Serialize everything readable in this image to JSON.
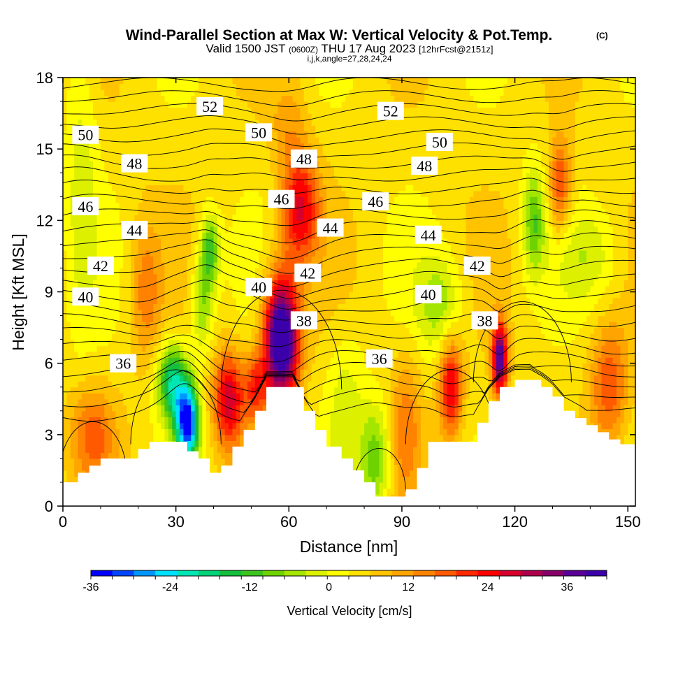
{
  "header": {
    "title": "Wind-Parallel Section at Max W: Vertical Velocity & Pot.Temp.",
    "title_units": "(C)",
    "valid_prefix": "Valid 1500 JST",
    "valid_utc": "(0600Z)",
    "valid_date": "THU 17 Aug 2023",
    "forecast": "[12hrFcst@2151z]",
    "indices": "i,j,k,angle=27,28,24,24"
  },
  "chart_data": {
    "type": "heatmap",
    "title": "Wind-Parallel Section at Max W: Vertical Velocity & Pot.Temp.",
    "xlabel": "Distance [nm]",
    "ylabel": "Height [Kft MSL]",
    "xlim": [
      0,
      152
    ],
    "ylim": [
      0,
      18
    ],
    "x_ticks": [
      "0",
      "30",
      "60",
      "90",
      "120",
      "150"
    ],
    "y_ticks": [
      "0",
      "3",
      "6",
      "9",
      "12",
      "15",
      "18"
    ],
    "grid": false,
    "colorbar": {
      "label": "Vertical Velocity [cm/s]",
      "range": [
        -36,
        42
      ],
      "step": 3,
      "tick_labels": [
        "-36",
        "-24",
        "-12",
        "0",
        "12",
        "24",
        "36"
      ],
      "colors": [
        "#0000ff",
        "#0046ff",
        "#0096ff",
        "#00e1ff",
        "#00e6b4",
        "#00d278",
        "#14be3c",
        "#3cc31e",
        "#6ed200",
        "#a5e600",
        "#dcf000",
        "#ffff00",
        "#ffe100",
        "#ffc300",
        "#ffa500",
        "#ff8200",
        "#ff5a00",
        "#ff2800",
        "#ff0000",
        "#d7002d",
        "#af004b",
        "#870069",
        "#5a0096",
        "#3c00aa"
      ]
    },
    "vertical_velocity_cells": [
      {
        "x": 33,
        "z": 3.5,
        "w": -36,
        "sx": 3,
        "sz": 1.6
      },
      {
        "x": 29,
        "z": 5.2,
        "w": -22,
        "sx": 4,
        "sz": 1.6
      },
      {
        "x": 37,
        "z": 8.5,
        "w": -11,
        "sx": 3,
        "sz": 2.0
      },
      {
        "x": 39,
        "z": 10.8,
        "w": -15,
        "sx": 2.5,
        "sz": 1.5
      },
      {
        "x": 58,
        "z": 7.0,
        "w": 42,
        "sx": 4.5,
        "sz": 2.6
      },
      {
        "x": 63,
        "z": 12.5,
        "w": 20,
        "sx": 5,
        "sz": 2.2
      },
      {
        "x": 44,
        "z": 4.5,
        "w": 22,
        "sx": 4,
        "sz": 2.0
      },
      {
        "x": 51,
        "z": 5.0,
        "w": 14,
        "sx": 3,
        "sz": 1.5
      },
      {
        "x": 83,
        "z": 2.0,
        "w": -13,
        "sx": 4,
        "sz": 2.2
      },
      {
        "x": 75,
        "z": 4.5,
        "w": -6,
        "sx": 5,
        "sz": 3.0
      },
      {
        "x": 91,
        "z": 3.5,
        "w": 9,
        "sx": 4,
        "sz": 3.0
      },
      {
        "x": 103,
        "z": 5.0,
        "w": 20,
        "sx": 3,
        "sz": 2.0
      },
      {
        "x": 116,
        "z": 6.2,
        "w": 32,
        "sx": 2,
        "sz": 1.5
      },
      {
        "x": 125,
        "z": 12.0,
        "w": -13,
        "sx": 3,
        "sz": 2.2
      },
      {
        "x": 132,
        "z": 13.5,
        "w": 14,
        "sx": 3,
        "sz": 2.0
      },
      {
        "x": 145,
        "z": 5.0,
        "w": 13,
        "sx": 5,
        "sz": 2.5
      },
      {
        "x": 8,
        "z": 3.0,
        "w": 11,
        "sx": 6,
        "sz": 2.0
      },
      {
        "x": 22,
        "z": 9.0,
        "w": 9,
        "sx": 4,
        "sz": 3.0
      },
      {
        "x": 100,
        "z": 8.5,
        "w": -9,
        "sx": 6,
        "sz": 2.0
      },
      {
        "x": 5,
        "z": 14.0,
        "w": -6,
        "sx": 4,
        "sz": 6.0
      },
      {
        "x": 60,
        "z": 16.0,
        "w": 6,
        "sx": 5,
        "sz": 2.0
      },
      {
        "x": 140,
        "z": 10.5,
        "w": -6,
        "sx": 8,
        "sz": 2.0
      }
    ],
    "terrain": [
      {
        "x": 0,
        "z": 1.0
      },
      {
        "x": 4,
        "z": 1.4
      },
      {
        "x": 7,
        "z": 1.7
      },
      {
        "x": 10,
        "z": 2.0
      },
      {
        "x": 20,
        "z": 2.4
      },
      {
        "x": 23,
        "z": 2.7
      },
      {
        "x": 28,
        "z": 2.7
      },
      {
        "x": 33,
        "z": 2.3
      },
      {
        "x": 36,
        "z": 2.0
      },
      {
        "x": 39,
        "z": 1.4
      },
      {
        "x": 42,
        "z": 1.7
      },
      {
        "x": 45,
        "z": 2.5
      },
      {
        "x": 48,
        "z": 3.2
      },
      {
        "x": 51,
        "z": 4.0
      },
      {
        "x": 54,
        "z": 5.0
      },
      {
        "x": 61,
        "z": 5.0
      },
      {
        "x": 64,
        "z": 4.0
      },
      {
        "x": 67,
        "z": 3.2
      },
      {
        "x": 70,
        "z": 2.5
      },
      {
        "x": 74,
        "z": 2.0
      },
      {
        "x": 77,
        "z": 1.5
      },
      {
        "x": 80,
        "z": 1.0
      },
      {
        "x": 83,
        "z": 0.4
      },
      {
        "x": 88,
        "z": 0.4
      },
      {
        "x": 91,
        "z": 0.7
      },
      {
        "x": 94,
        "z": 1.6
      },
      {
        "x": 97,
        "z": 2.7
      },
      {
        "x": 107,
        "z": 2.7
      },
      {
        "x": 110,
        "z": 3.5
      },
      {
        "x": 113,
        "z": 4.4
      },
      {
        "x": 116,
        "z": 5.0
      },
      {
        "x": 120,
        "z": 5.3
      },
      {
        "x": 124,
        "z": 5.3
      },
      {
        "x": 127,
        "z": 5.0
      },
      {
        "x": 130,
        "z": 4.6
      },
      {
        "x": 133,
        "z": 4.0
      },
      {
        "x": 136,
        "z": 3.7
      },
      {
        "x": 139,
        "z": 3.4
      },
      {
        "x": 142,
        "z": 3.1
      },
      {
        "x": 145,
        "z": 2.8
      },
      {
        "x": 148,
        "z": 2.6
      },
      {
        "x": 152,
        "z": 2.4
      }
    ],
    "theta_contour_labels": [
      {
        "text": "52",
        "x": 39,
        "z": 16.8
      },
      {
        "text": "52",
        "x": 87,
        "z": 16.6
      },
      {
        "text": "50",
        "x": 6,
        "z": 15.6
      },
      {
        "text": "50",
        "x": 52,
        "z": 15.7
      },
      {
        "text": "50",
        "x": 100,
        "z": 15.3
      },
      {
        "text": "48",
        "x": 19,
        "z": 14.4
      },
      {
        "text": "48",
        "x": 64,
        "z": 14.6
      },
      {
        "text": "48",
        "x": 96,
        "z": 14.3
      },
      {
        "text": "46",
        "x": 6,
        "z": 12.6
      },
      {
        "text": "46",
        "x": 58,
        "z": 12.9
      },
      {
        "text": "46",
        "x": 83,
        "z": 12.8
      },
      {
        "text": "44",
        "x": 19,
        "z": 11.6
      },
      {
        "text": "44",
        "x": 71,
        "z": 11.7
      },
      {
        "text": "44",
        "x": 97,
        "z": 11.4
      },
      {
        "text": "42",
        "x": 10,
        "z": 10.1
      },
      {
        "text": "42",
        "x": 65,
        "z": 9.8
      },
      {
        "text": "42",
        "x": 110,
        "z": 10.1
      },
      {
        "text": "40",
        "x": 6,
        "z": 8.8
      },
      {
        "text": "40",
        "x": 52,
        "z": 9.2
      },
      {
        "text": "40",
        "x": 97,
        "z": 8.9
      },
      {
        "text": "38",
        "x": 64,
        "z": 7.8
      },
      {
        "text": "38",
        "x": 112,
        "z": 7.8
      },
      {
        "text": "36",
        "x": 16,
        "z": 6.0
      },
      {
        "text": "36",
        "x": 84,
        "z": 6.2
      }
    ]
  }
}
